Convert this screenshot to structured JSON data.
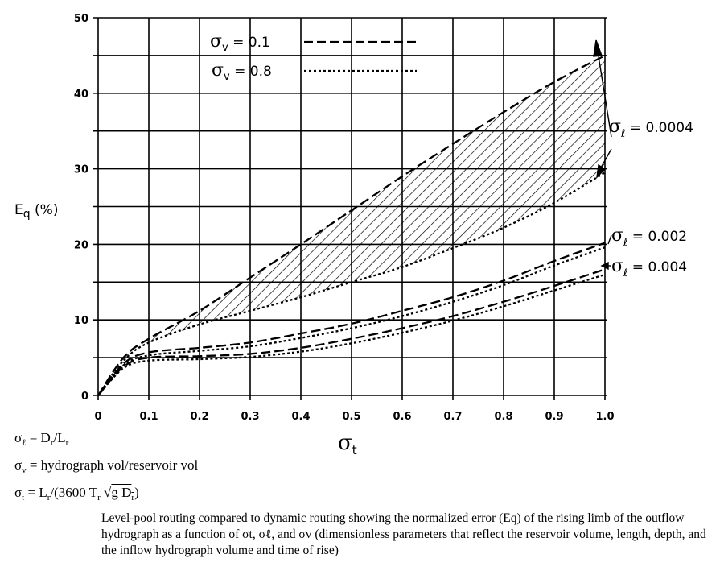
{
  "chart_data": {
    "type": "line",
    "title": "",
    "xlabel": "σt",
    "ylabel": "Eq (%)",
    "xlim": [
      0,
      1.0
    ],
    "ylim": [
      0,
      50
    ],
    "grid": true,
    "x_ticks": [
      "0",
      "0.1",
      "0.2",
      "0.3",
      "0.4",
      "0.5",
      "0.6",
      "0.7",
      "0.8",
      "0.9",
      "1.0"
    ],
    "y_ticks": [
      "0",
      "10",
      "20",
      "30",
      "40",
      "50"
    ],
    "legend": [
      {
        "label": "σv = 0.1",
        "style": "dashed"
      },
      {
        "label": "σv = 0.8",
        "style": "dotted"
      }
    ],
    "x": [
      0,
      0.05,
      0.1,
      0.2,
      0.3,
      0.4,
      0.5,
      0.6,
      0.7,
      0.8,
      0.9,
      1.0
    ],
    "series": [
      {
        "name": "σℓ = 0.0004, σv = 0.1",
        "style": "dashed",
        "values": [
          0,
          5.0,
          7.5,
          11.2,
          15.6,
          20.0,
          24.5,
          29.0,
          33.3,
          37.5,
          41.5,
          45.0
        ]
      },
      {
        "name": "σℓ = 0.0004, σv = 0.8",
        "style": "dotted",
        "values": [
          0,
          4.6,
          7.0,
          9.4,
          11.2,
          13.0,
          15.0,
          17.0,
          19.5,
          22.2,
          25.5,
          29.5
        ]
      },
      {
        "name": "σℓ = 0.002, σv = 0.1",
        "style": "dashed",
        "values": [
          0,
          4.2,
          5.7,
          6.3,
          7.0,
          8.2,
          9.5,
          11.2,
          13.0,
          15.2,
          17.8,
          20.2
        ]
      },
      {
        "name": "σℓ = 0.002, σv = 0.8",
        "style": "dotted",
        "values": [
          0,
          4.0,
          5.3,
          5.9,
          6.5,
          7.6,
          8.9,
          10.5,
          12.4,
          14.6,
          17.2,
          19.6
        ]
      },
      {
        "name": "σℓ = 0.004, σv = 0.1",
        "style": "dashed",
        "values": [
          0,
          3.8,
          5.0,
          5.2,
          5.5,
          6.3,
          7.5,
          8.9,
          10.5,
          12.4,
          14.5,
          16.7
        ]
      },
      {
        "name": "σℓ = 0.004, σv = 0.8",
        "style": "dotted",
        "values": [
          0,
          3.6,
          4.6,
          4.8,
          5.1,
          5.8,
          6.9,
          8.3,
          9.9,
          11.8,
          13.9,
          16.0
        ]
      }
    ],
    "shaded_region": "between σℓ = 0.0004 curves (σv = 0.1 and σv = 0.8), diagonal hatching",
    "annotations": [
      {
        "text": "σℓ = 0.0004",
        "points_to": [
          "σℓ = 0.0004 curves at σt = 1.0"
        ]
      },
      {
        "text": "σℓ = 0.002",
        "points_to": [
          "σℓ = 0.002 curves at σt = 1.0"
        ]
      },
      {
        "text": "σℓ = 0.004",
        "points_to": [
          "σℓ = 0.004 curves at σt = 1.0"
        ]
      }
    ]
  },
  "axis": {
    "y_label_main": "E",
    "y_label_sub": "q",
    "y_label_unit": " (%)",
    "x_label_main": "σ",
    "x_label_sub": "t"
  },
  "legend": {
    "item1": {
      "sym": "σ",
      "sub": "v",
      "eq": " = 0.1"
    },
    "item2": {
      "sym": "σ",
      "sub": "v",
      "eq": " = 0.8"
    }
  },
  "annotations": {
    "a1": {
      "sym": "σ",
      "sub": "ℓ",
      "eq": " = 0.0004"
    },
    "a2": {
      "sym": "σ",
      "sub": "ℓ",
      "eq": " = 0.002"
    },
    "a3": {
      "sym": "σ",
      "sub": "ℓ",
      "eq": " = 0.004"
    }
  },
  "definitions": {
    "d1": {
      "sym": "σ",
      "sub": "ℓ",
      "rhs": " =  D",
      "rhs_sub1": "r",
      "rhs_mid": "/L",
      "rhs_sub2": "r"
    },
    "d2": {
      "sym": "σ",
      "sub": "v",
      "rhs": " =  hydrograph vol/reservoir vol"
    },
    "d3": {
      "sym": "σ",
      "sub": "t",
      "rhs": " =  L",
      "rhs_sub1": "r",
      "rhs_mid": "/(3600 T",
      "rhs_sub2": "r",
      "rhs_sqrt": "g D",
      "rhs_sub3": "r",
      "rhs_end": ")"
    }
  },
  "caption": "Level-pool routing compared to dynamic routing showing the normalized error (Eq) of the rising limb of the outflow hydrograph as a function of σt, σℓ, and σv (dimensionless parameters that reflect the reservoir volume, length, depth, and the inflow hydrograph volume and time of rise)"
}
